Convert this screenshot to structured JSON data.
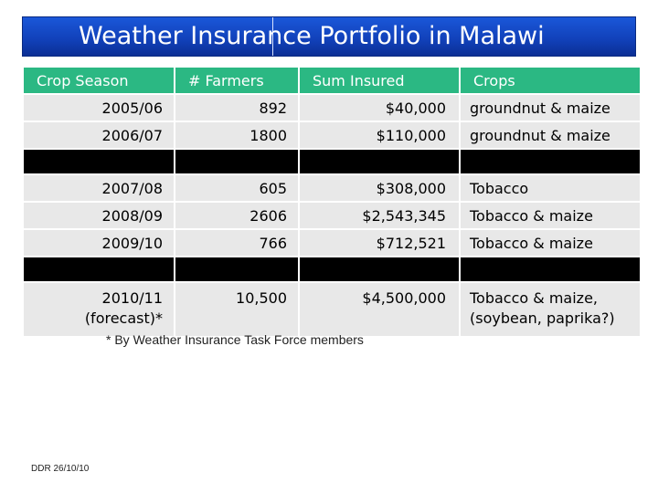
{
  "title": "Weather Insurance Portfolio in Malawi",
  "table": {
    "headers": [
      "Crop Season",
      "# Farmers",
      "Sum Insured",
      "Crops"
    ],
    "rows": [
      [
        "2005/06",
        "892",
        "$40,000",
        "groundnut & maize"
      ],
      [
        "2006/07",
        "1800",
        "$110,000",
        "groundnut & maize"
      ],
      [
        "2007/08",
        "605",
        "$308,000",
        "Tobacco"
      ],
      [
        "2008/09",
        "2606",
        "$2,543,345",
        "Tobacco & maize"
      ],
      [
        "2009/10",
        "766",
        "$712,521",
        "Tobacco & maize"
      ]
    ],
    "forecast_row": {
      "season_line1": "2010/11",
      "season_line2": "(forecast)*",
      "farmers": "10,500",
      "sum_insured": "$4,500,000",
      "crops_line1": "Tobacco & maize,",
      "crops_line2": "(soybean, paprika?)"
    }
  },
  "footnote": "* By Weather Insurance Task Force members",
  "date_label": "DDR 26/10/10",
  "colors": {
    "title_bar": "#1a57d9",
    "header_bg": "#2bb883",
    "row_bg": "#e8e8e8",
    "separator": "#000000"
  }
}
